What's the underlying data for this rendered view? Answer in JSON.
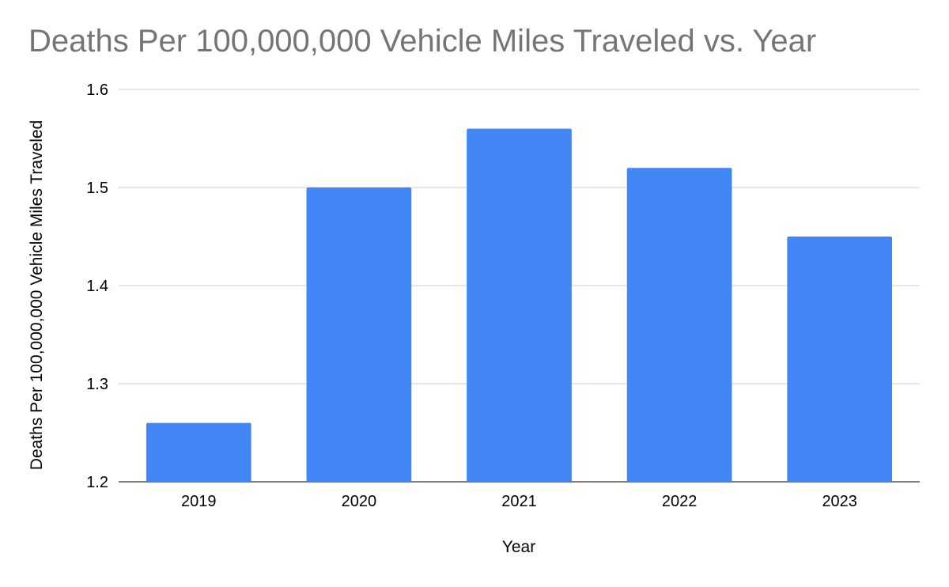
{
  "chart_data": {
    "type": "bar",
    "title": "Deaths Per 100,000,000 Vehicle Miles Traveled vs. Year",
    "xlabel": "Year",
    "ylabel": "Deaths Per 100,000,000 Vehicle Miles Traveled",
    "categories": [
      "2019",
      "2020",
      "2021",
      "2022",
      "2023"
    ],
    "values": [
      1.26,
      1.5,
      1.56,
      1.52,
      1.45
    ],
    "ylim": [
      1.2,
      1.6
    ],
    "yticks": [
      "1.2",
      "1.3",
      "1.4",
      "1.5",
      "1.6"
    ],
    "grid": true,
    "legend": "none",
    "bar_color": "#4285f4",
    "grid_color": "#cccccc",
    "title_color": "#757575"
  }
}
